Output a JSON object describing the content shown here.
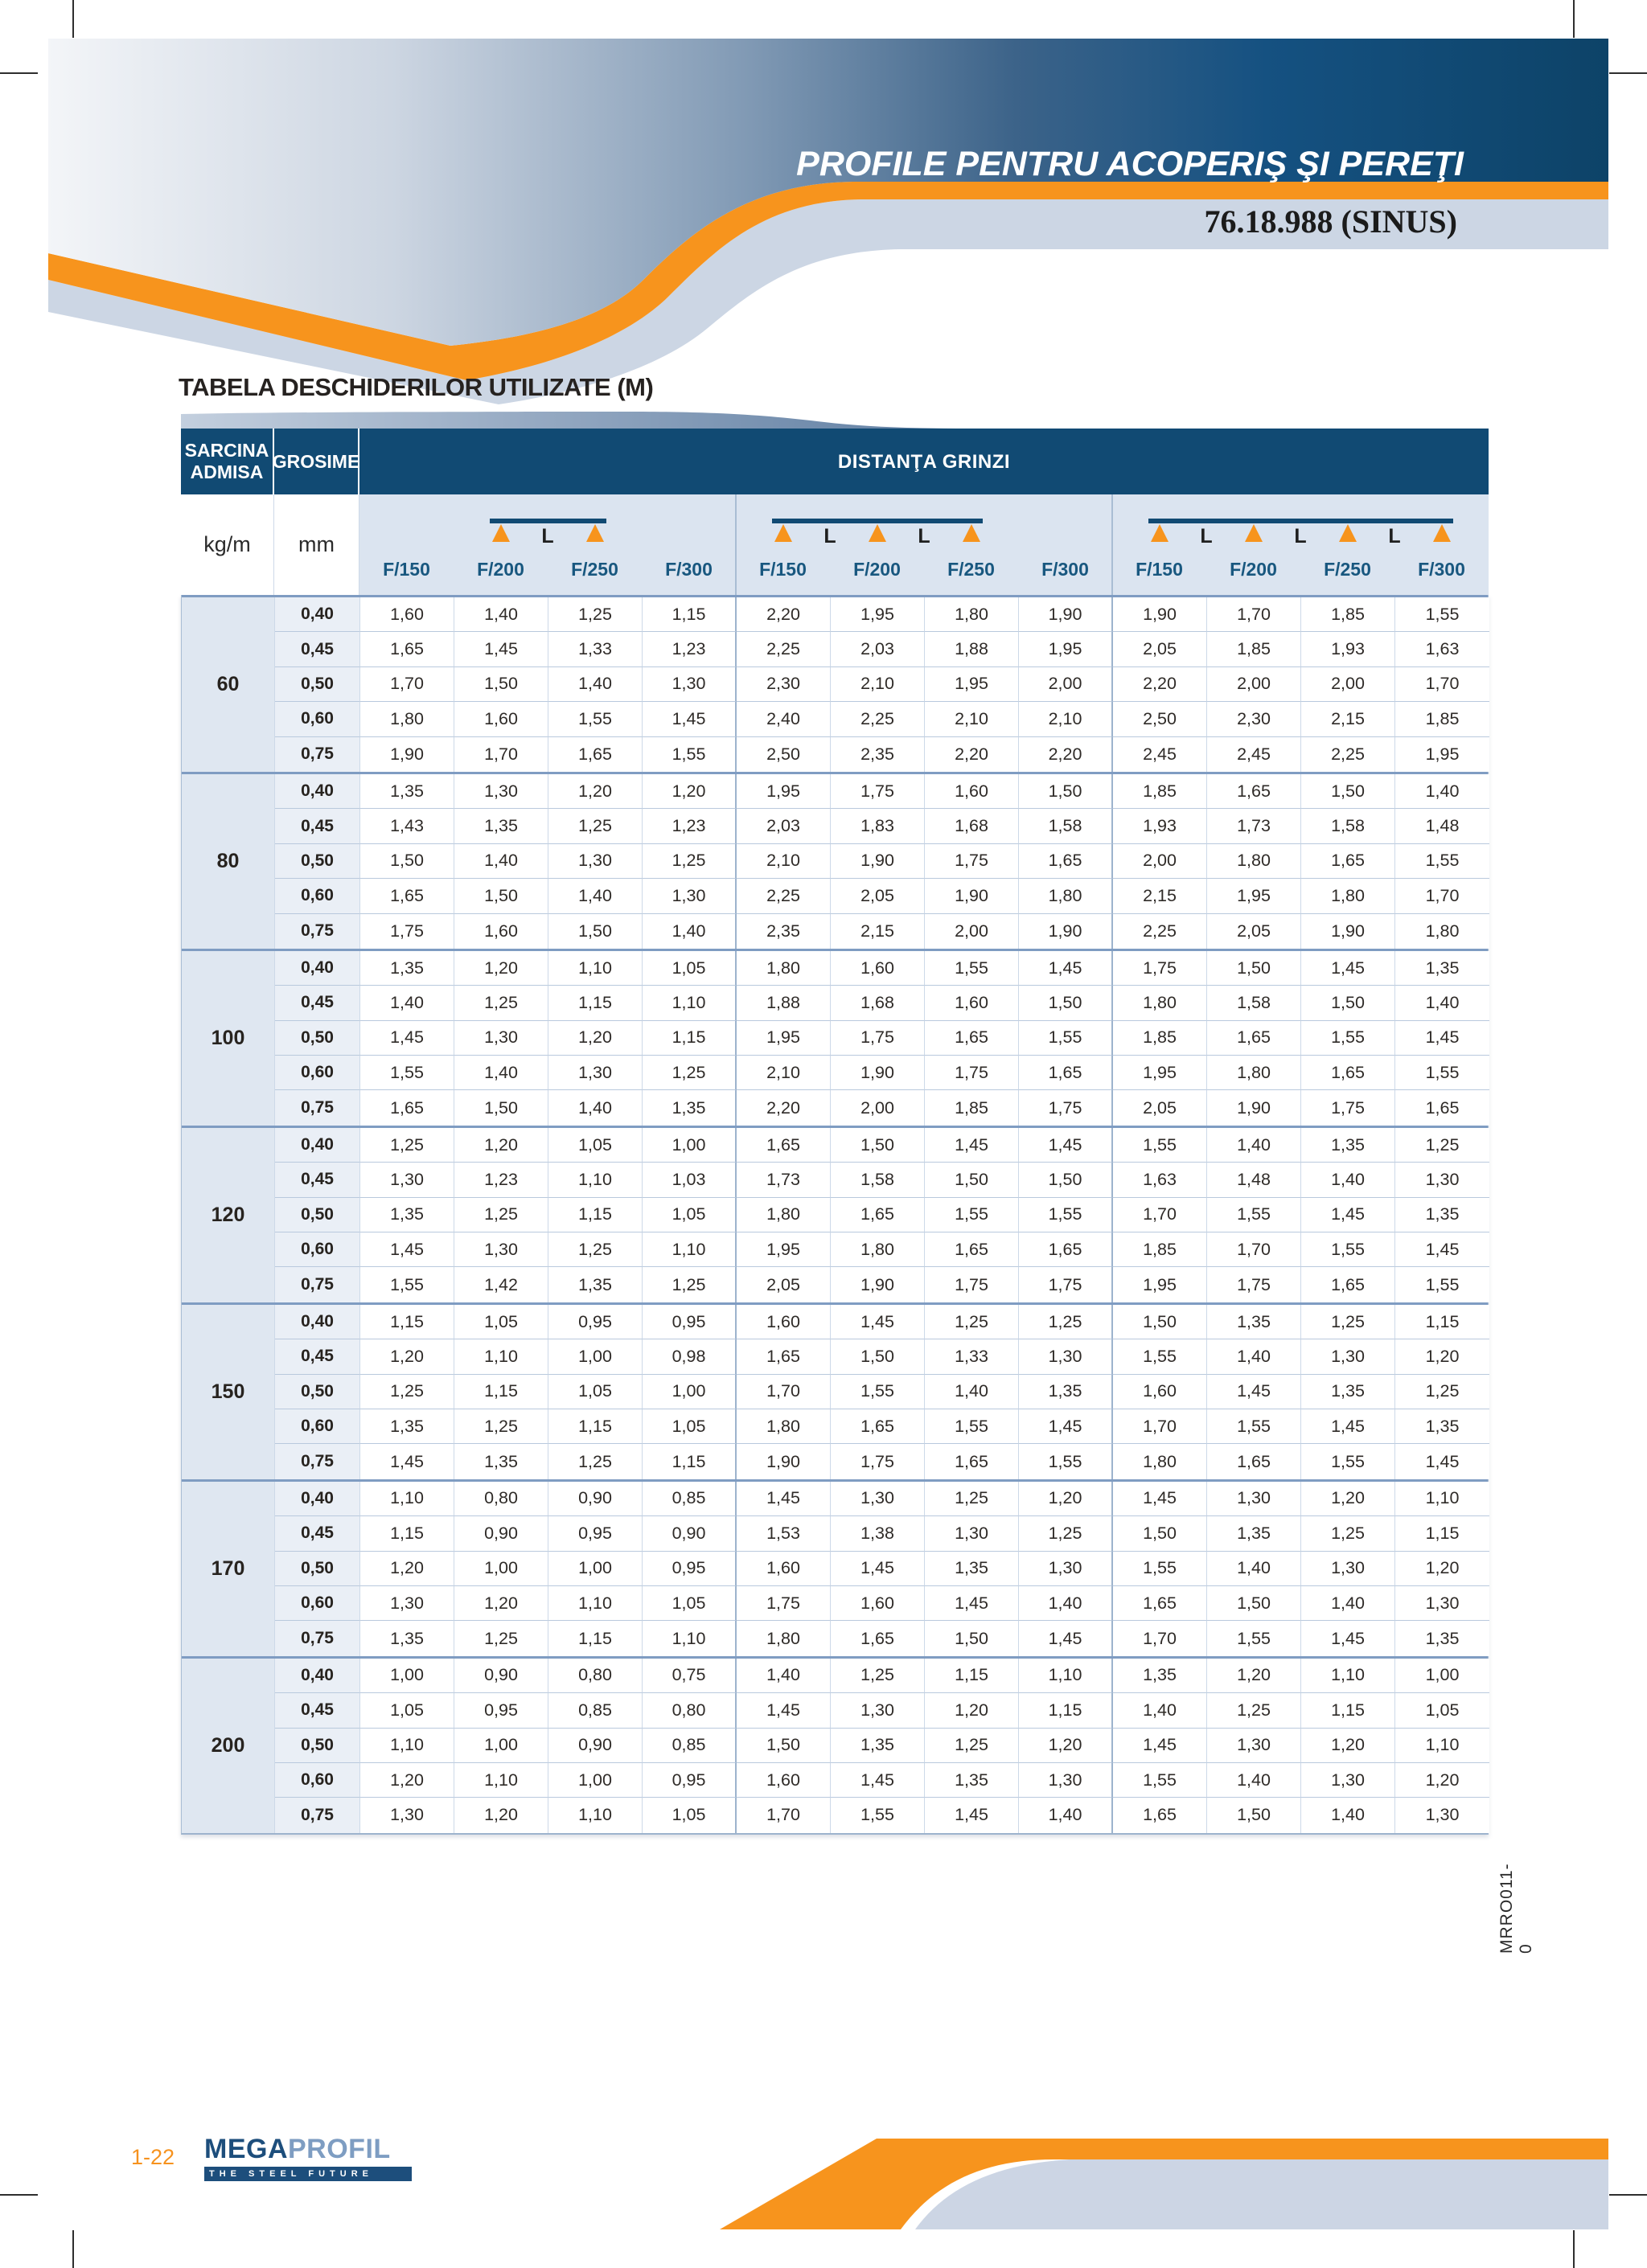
{
  "header": {
    "title": "PROFILE PENTRU ACOPERIŞ ŞI PEREŢI",
    "subtitle": "76.18.988 (SINUS)"
  },
  "section_title": "TABELA DESCHIDERILOR UTILIZATE (M)",
  "side_code": "MRRO011-0",
  "footer": {
    "page_number": "1-22",
    "logo_primary": "MEGA",
    "logo_secondary": "PROFIL",
    "logo_tagline": "THE STEEL FUTURE"
  },
  "colors": {
    "navy": "#114a73",
    "orange": "#f7941d",
    "light_band": "#ccd6e4",
    "cell_blue": "#dbe4f0"
  },
  "table": {
    "col1_header": "SARCINA ADMISA",
    "col2_header": "GROSIME",
    "span_header": "DISTANŢA GRINZI",
    "col1_unit": "kg/m",
    "col2_unit": "mm",
    "beam_label": "L",
    "beam_diagrams": [
      {
        "supports": 2,
        "span_labels": [
          "L"
        ]
      },
      {
        "supports": 3,
        "span_labels": [
          "L",
          "L"
        ]
      },
      {
        "supports": 4,
        "span_labels": [
          "L",
          "L",
          "L"
        ]
      }
    ],
    "f_labels": [
      "F/150",
      "F/200",
      "F/250",
      "F/300"
    ],
    "groups": [
      {
        "load": "60",
        "rows": [
          {
            "t": "0,40",
            "v": [
              "1,60",
              "1,40",
              "1,25",
              "1,15",
              "2,20",
              "1,95",
              "1,80",
              "1,90",
              "1,90",
              "1,70",
              "1,85",
              "1,55"
            ]
          },
          {
            "t": "0,45",
            "v": [
              "1,65",
              "1,45",
              "1,33",
              "1,23",
              "2,25",
              "2,03",
              "1,88",
              "1,95",
              "2,05",
              "1,85",
              "1,93",
              "1,63"
            ]
          },
          {
            "t": "0,50",
            "v": [
              "1,70",
              "1,50",
              "1,40",
              "1,30",
              "2,30",
              "2,10",
              "1,95",
              "2,00",
              "2,20",
              "2,00",
              "2,00",
              "1,70"
            ]
          },
          {
            "t": "0,60",
            "v": [
              "1,80",
              "1,60",
              "1,55",
              "1,45",
              "2,40",
              "2,25",
              "2,10",
              "2,10",
              "2,50",
              "2,30",
              "2,15",
              "1,85"
            ]
          },
          {
            "t": "0,75",
            "v": [
              "1,90",
              "1,70",
              "1,65",
              "1,55",
              "2,50",
              "2,35",
              "2,20",
              "2,20",
              "2,45",
              "2,45",
              "2,25",
              "1,95"
            ]
          }
        ]
      },
      {
        "load": "80",
        "rows": [
          {
            "t": "0,40",
            "v": [
              "1,35",
              "1,30",
              "1,20",
              "1,20",
              "1,95",
              "1,75",
              "1,60",
              "1,50",
              "1,85",
              "1,65",
              "1,50",
              "1,40"
            ]
          },
          {
            "t": "0,45",
            "v": [
              "1,43",
              "1,35",
              "1,25",
              "1,23",
              "2,03",
              "1,83",
              "1,68",
              "1,58",
              "1,93",
              "1,73",
              "1,58",
              "1,48"
            ]
          },
          {
            "t": "0,50",
            "v": [
              "1,50",
              "1,40",
              "1,30",
              "1,25",
              "2,10",
              "1,90",
              "1,75",
              "1,65",
              "2,00",
              "1,80",
              "1,65",
              "1,55"
            ]
          },
          {
            "t": "0,60",
            "v": [
              "1,65",
              "1,50",
              "1,40",
              "1,30",
              "2,25",
              "2,05",
              "1,90",
              "1,80",
              "2,15",
              "1,95",
              "1,80",
              "1,70"
            ]
          },
          {
            "t": "0,75",
            "v": [
              "1,75",
              "1,60",
              "1,50",
              "1,40",
              "2,35",
              "2,15",
              "2,00",
              "1,90",
              "2,25",
              "2,05",
              "1,90",
              "1,80"
            ]
          }
        ]
      },
      {
        "load": "100",
        "rows": [
          {
            "t": "0,40",
            "v": [
              "1,35",
              "1,20",
              "1,10",
              "1,05",
              "1,80",
              "1,60",
              "1,55",
              "1,45",
              "1,75",
              "1,50",
              "1,45",
              "1,35"
            ]
          },
          {
            "t": "0,45",
            "v": [
              "1,40",
              "1,25",
              "1,15",
              "1,10",
              "1,88",
              "1,68",
              "1,60",
              "1,50",
              "1,80",
              "1,58",
              "1,50",
              "1,40"
            ]
          },
          {
            "t": "0,50",
            "v": [
              "1,45",
              "1,30",
              "1,20",
              "1,15",
              "1,95",
              "1,75",
              "1,65",
              "1,55",
              "1,85",
              "1,65",
              "1,55",
              "1,45"
            ]
          },
          {
            "t": "0,60",
            "v": [
              "1,55",
              "1,40",
              "1,30",
              "1,25",
              "2,10",
              "1,90",
              "1,75",
              "1,65",
              "1,95",
              "1,80",
              "1,65",
              "1,55"
            ]
          },
          {
            "t": "0,75",
            "v": [
              "1,65",
              "1,50",
              "1,40",
              "1,35",
              "2,20",
              "2,00",
              "1,85",
              "1,75",
              "2,05",
              "1,90",
              "1,75",
              "1,65"
            ]
          }
        ]
      },
      {
        "load": "120",
        "rows": [
          {
            "t": "0,40",
            "v": [
              "1,25",
              "1,20",
              "1,05",
              "1,00",
              "1,65",
              "1,50",
              "1,45",
              "1,45",
              "1,55",
              "1,40",
              "1,35",
              "1,25"
            ]
          },
          {
            "t": "0,45",
            "v": [
              "1,30",
              "1,23",
              "1,10",
              "1,03",
              "1,73",
              "1,58",
              "1,50",
              "1,50",
              "1,63",
              "1,48",
              "1,40",
              "1,30"
            ]
          },
          {
            "t": "0,50",
            "v": [
              "1,35",
              "1,25",
              "1,15",
              "1,05",
              "1,80",
              "1,65",
              "1,55",
              "1,55",
              "1,70",
              "1,55",
              "1,45",
              "1,35"
            ]
          },
          {
            "t": "0,60",
            "v": [
              "1,45",
              "1,30",
              "1,25",
              "1,10",
              "1,95",
              "1,80",
              "1,65",
              "1,65",
              "1,85",
              "1,70",
              "1,55",
              "1,45"
            ]
          },
          {
            "t": "0,75",
            "v": [
              "1,55",
              "1,42",
              "1,35",
              "1,25",
              "2,05",
              "1,90",
              "1,75",
              "1,75",
              "1,95",
              "1,75",
              "1,65",
              "1,55"
            ]
          }
        ]
      },
      {
        "load": "150",
        "rows": [
          {
            "t": "0,40",
            "v": [
              "1,15",
              "1,05",
              "0,95",
              "0,95",
              "1,60",
              "1,45",
              "1,25",
              "1,25",
              "1,50",
              "1,35",
              "1,25",
              "1,15"
            ]
          },
          {
            "t": "0,45",
            "v": [
              "1,20",
              "1,10",
              "1,00",
              "0,98",
              "1,65",
              "1,50",
              "1,33",
              "1,30",
              "1,55",
              "1,40",
              "1,30",
              "1,20"
            ]
          },
          {
            "t": "0,50",
            "v": [
              "1,25",
              "1,15",
              "1,05",
              "1,00",
              "1,70",
              "1,55",
              "1,40",
              "1,35",
              "1,60",
              "1,45",
              "1,35",
              "1,25"
            ]
          },
          {
            "t": "0,60",
            "v": [
              "1,35",
              "1,25",
              "1,15",
              "1,05",
              "1,80",
              "1,65",
              "1,55",
              "1,45",
              "1,70",
              "1,55",
              "1,45",
              "1,35"
            ]
          },
          {
            "t": "0,75",
            "v": [
              "1,45",
              "1,35",
              "1,25",
              "1,15",
              "1,90",
              "1,75",
              "1,65",
              "1,55",
              "1,80",
              "1,65",
              "1,55",
              "1,45"
            ]
          }
        ]
      },
      {
        "load": "170",
        "rows": [
          {
            "t": "0,40",
            "v": [
              "1,10",
              "0,80",
              "0,90",
              "0,85",
              "1,45",
              "1,30",
              "1,25",
              "1,20",
              "1,45",
              "1,30",
              "1,20",
              "1,10"
            ]
          },
          {
            "t": "0,45",
            "v": [
              "1,15",
              "0,90",
              "0,95",
              "0,90",
              "1,53",
              "1,38",
              "1,30",
              "1,25",
              "1,50",
              "1,35",
              "1,25",
              "1,15"
            ]
          },
          {
            "t": "0,50",
            "v": [
              "1,20",
              "1,00",
              "1,00",
              "0,95",
              "1,60",
              "1,45",
              "1,35",
              "1,30",
              "1,55",
              "1,40",
              "1,30",
              "1,20"
            ]
          },
          {
            "t": "0,60",
            "v": [
              "1,30",
              "1,20",
              "1,10",
              "1,05",
              "1,75",
              "1,60",
              "1,45",
              "1,40",
              "1,65",
              "1,50",
              "1,40",
              "1,30"
            ]
          },
          {
            "t": "0,75",
            "v": [
              "1,35",
              "1,25",
              "1,15",
              "1,10",
              "1,80",
              "1,65",
              "1,50",
              "1,45",
              "1,70",
              "1,55",
              "1,45",
              "1,35"
            ]
          }
        ]
      },
      {
        "load": "200",
        "rows": [
          {
            "t": "0,40",
            "v": [
              "1,00",
              "0,90",
              "0,80",
              "0,75",
              "1,40",
              "1,25",
              "1,15",
              "1,10",
              "1,35",
              "1,20",
              "1,10",
              "1,00"
            ]
          },
          {
            "t": "0,45",
            "v": [
              "1,05",
              "0,95",
              "0,85",
              "0,80",
              "1,45",
              "1,30",
              "1,20",
              "1,15",
              "1,40",
              "1,25",
              "1,15",
              "1,05"
            ]
          },
          {
            "t": "0,50",
            "v": [
              "1,10",
              "1,00",
              "0,90",
              "0,85",
              "1,50",
              "1,35",
              "1,25",
              "1,20",
              "1,45",
              "1,30",
              "1,20",
              "1,10"
            ]
          },
          {
            "t": "0,60",
            "v": [
              "1,20",
              "1,10",
              "1,00",
              "0,95",
              "1,60",
              "1,45",
              "1,35",
              "1,30",
              "1,55",
              "1,40",
              "1,30",
              "1,20"
            ]
          },
          {
            "t": "0,75",
            "v": [
              "1,30",
              "1,20",
              "1,10",
              "1,05",
              "1,70",
              "1,55",
              "1,45",
              "1,40",
              "1,65",
              "1,50",
              "1,40",
              "1,30"
            ]
          }
        ]
      }
    ]
  }
}
